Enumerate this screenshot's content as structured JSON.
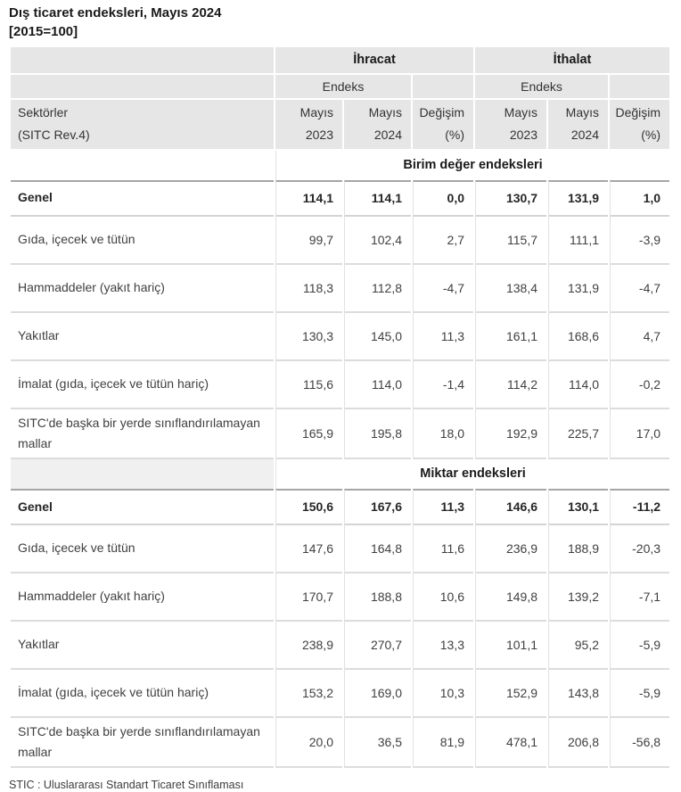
{
  "page": {
    "title_line1": "Dış ticaret endeksleri, Mayıs 2024",
    "title_line2": "[2015=100]",
    "footnote": "STIC : Uluslararası Standart Ticaret Sınıflaması"
  },
  "table": {
    "groups": [
      "İhracat",
      "İthalat"
    ],
    "endeks_label": "Endeks",
    "sector_header": "Sektörler\n(SITC Rev.4)",
    "col_headers": [
      "Mayıs\n2023",
      "Mayıs\n2024",
      "Değişim\n(%)"
    ],
    "sections": [
      {
        "title": "Birim değer endeksleri",
        "first_cell_bg": "#ffffff",
        "rows": [
          {
            "label": "Genel",
            "bold": true,
            "values": [
              "114,1",
              "114,1",
              "0,0",
              "130,7",
              "131,9",
              "1,0"
            ]
          },
          {
            "label": "Gıda, içecek ve tütün",
            "bold": false,
            "values": [
              "99,7",
              "102,4",
              "2,7",
              "115,7",
              "111,1",
              "-3,9"
            ]
          },
          {
            "label": "Hammaddeler (yakıt hariç)",
            "bold": false,
            "values": [
              "118,3",
              "112,8",
              "-4,7",
              "138,4",
              "131,9",
              "-4,7"
            ]
          },
          {
            "label": "Yakıtlar",
            "bold": false,
            "values": [
              "130,3",
              "145,0",
              "11,3",
              "161,1",
              "168,6",
              "4,7"
            ]
          },
          {
            "label": "İmalat (gıda, içecek ve tütün hariç)",
            "bold": false,
            "values": [
              "115,6",
              "114,0",
              "-1,4",
              "114,2",
              "114,0",
              "-0,2"
            ]
          },
          {
            "label": "SITC'de başka bir yerde sınıflandırılamayan mallar",
            "bold": false,
            "values": [
              "165,9",
              "195,8",
              "18,0",
              "192,9",
              "225,7",
              "17,0"
            ]
          }
        ]
      },
      {
        "title": "Miktar endeksleri",
        "first_cell_bg": "#f0f0f0",
        "rows": [
          {
            "label": "Genel",
            "bold": true,
            "values": [
              "150,6",
              "167,6",
              "11,3",
              "146,6",
              "130,1",
              "-11,2"
            ]
          },
          {
            "label": "Gıda, içecek ve tütün",
            "bold": false,
            "values": [
              "147,6",
              "164,8",
              "11,6",
              "236,9",
              "188,9",
              "-20,3"
            ]
          },
          {
            "label": "Hammaddeler (yakıt hariç)",
            "bold": false,
            "values": [
              "170,7",
              "188,8",
              "10,6",
              "149,8",
              "139,2",
              "-7,1"
            ]
          },
          {
            "label": "Yakıtlar",
            "bold": false,
            "values": [
              "238,9",
              "270,7",
              "13,3",
              "101,1",
              "95,2",
              "-5,9"
            ]
          },
          {
            "label": "İmalat (gıda, içecek ve tütün hariç)",
            "bold": false,
            "values": [
              "153,2",
              "169,0",
              "10,3",
              "152,9",
              "143,8",
              "-5,9"
            ]
          },
          {
            "label": "SITC'de başka bir yerde sınıflandırılamayan mallar",
            "bold": false,
            "values": [
              "20,0",
              "36,5",
              "81,9",
              "478,1",
              "206,8",
              "-56,8"
            ]
          }
        ]
      }
    ],
    "colors": {
      "header_bg": "#e6e6e6",
      "row_border": "#dcdcdc",
      "genel_top_border": "#a6a6a6",
      "column_separator": "#e2e2e2",
      "title_text": "#1a1a1a",
      "body_text": "#404040",
      "section2_first_cell_bg": "#f0f0f0"
    }
  },
  "chart_data": {
    "type": "table",
    "title": "Dış ticaret endeksleri, Mayıs 2024 [2015=100]",
    "column_groups": [
      "İhracat",
      "İthalat"
    ],
    "columns": [
      "Sektörler (SITC Rev.4)",
      "İhracat Endeks Mayıs 2023",
      "İhracat Endeks Mayıs 2024",
      "İhracat Değişim (%)",
      "İthalat Endeks Mayıs 2023",
      "İthalat Endeks Mayıs 2024",
      "İthalat Değişim (%)"
    ],
    "sections": [
      {
        "name": "Birim değer endeksleri",
        "rows": [
          [
            "Genel",
            114.1,
            114.1,
            0.0,
            130.7,
            131.9,
            1.0
          ],
          [
            "Gıda, içecek ve tütün",
            99.7,
            102.4,
            2.7,
            115.7,
            111.1,
            -3.9
          ],
          [
            "Hammaddeler (yakıt hariç)",
            118.3,
            112.8,
            -4.7,
            138.4,
            131.9,
            -4.7
          ],
          [
            "Yakıtlar",
            130.3,
            145.0,
            11.3,
            161.1,
            168.6,
            4.7
          ],
          [
            "İmalat (gıda, içecek ve tütün hariç)",
            115.6,
            114.0,
            -1.4,
            114.2,
            114.0,
            -0.2
          ],
          [
            "SITC'de başka bir yerde sınıflandırılamayan mallar",
            165.9,
            195.8,
            18.0,
            192.9,
            225.7,
            17.0
          ]
        ]
      },
      {
        "name": "Miktar endeksleri",
        "rows": [
          [
            "Genel",
            150.6,
            167.6,
            11.3,
            146.6,
            130.1,
            -11.2
          ],
          [
            "Gıda, içecek ve tütün",
            147.6,
            164.8,
            11.6,
            236.9,
            188.9,
            -20.3
          ],
          [
            "Hammaddeler (yakıt hariç)",
            170.7,
            188.8,
            10.6,
            149.8,
            139.2,
            -7.1
          ],
          [
            "Yakıtlar",
            238.9,
            270.7,
            13.3,
            101.1,
            95.2,
            -5.9
          ],
          [
            "İmalat (gıda, içecek ve tütün hariç)",
            153.2,
            169.0,
            10.3,
            152.9,
            143.8,
            -5.9
          ],
          [
            "SITC'de başka bir yerde sınıflandırılamayan mallar",
            20.0,
            36.5,
            81.9,
            478.1,
            206.8,
            -56.8
          ]
        ]
      }
    ],
    "footnote": "STIC : Uluslararası Standart Ticaret Sınıflaması"
  }
}
